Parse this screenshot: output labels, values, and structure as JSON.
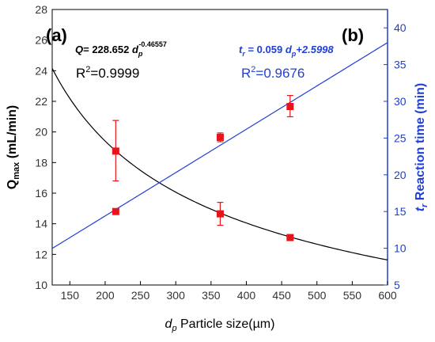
{
  "chart_data": {
    "type": "scatter",
    "panel_labels": [
      "(a)",
      "(b)"
    ],
    "x_axis": {
      "label_italic": "d",
      "label_sub": "p",
      "label_text": " Particle size(µm)",
      "range": [
        125,
        600
      ],
      "ticks": [
        150,
        200,
        250,
        300,
        350,
        400,
        450,
        500,
        550,
        600
      ]
    },
    "y_left": {
      "label_main": "Q",
      "label_sub": "max",
      "label_text": " (mL/min)",
      "range": [
        10,
        28
      ],
      "ticks": [
        10,
        12,
        14,
        16,
        18,
        20,
        22,
        24,
        26,
        28
      ],
      "color": "#000000"
    },
    "y_right": {
      "label_italic": "t",
      "label_sub": "r",
      "label_text": " Reaction time (min)",
      "range": [
        5,
        42.5
      ],
      "ticks": [
        5,
        10,
        15,
        20,
        25,
        30,
        35,
        40
      ],
      "color": "#1f3fd6"
    },
    "equations": {
      "q": {
        "lhs": "Q",
        "eq": "= 228.652 ",
        "var": "d",
        "sub": "p",
        "exp": "-0.46557",
        "r2_label": "R",
        "r2_sup": "2",
        "r2_value": "=0.9999",
        "color": "#000000"
      },
      "t": {
        "lhs": "t",
        "lhs_sub": "r",
        "eq": " = 0.059 ",
        "var": "d",
        "sub": "p",
        "tail": "+2.5998",
        "r2_label": "R",
        "r2_sup": "2",
        "r2_value": "=0.9676",
        "color": "#1f3fd6"
      }
    },
    "series": [
      {
        "axis": "left",
        "marker_color": "#e8141b",
        "points": [
          {
            "x": 215,
            "y": 18.75,
            "err_low": 16.8,
            "err_high": 20.75
          },
          {
            "x": 363,
            "y": 14.65,
            "err_low": 13.9,
            "err_high": 15.4
          },
          {
            "x": 462,
            "y": 13.1,
            "err_low": 13.1,
            "err_high": 13.1
          }
        ],
        "fit": {
          "type": "power",
          "a": 228.652,
          "b": -0.46557,
          "line_color": "#000000"
        }
      },
      {
        "axis": "right",
        "marker_color": "#e8141b",
        "points": [
          {
            "x": 215,
            "y": 15.0,
            "err_low": 15.0,
            "err_high": 15.0
          },
          {
            "x": 363,
            "y": 25.1,
            "err_low": 24.5,
            "err_high": 25.7
          },
          {
            "x": 462,
            "y": 29.3,
            "err_low": 27.9,
            "err_high": 30.8
          }
        ],
        "fit": {
          "type": "linear",
          "m": 0.059,
          "c": 2.5998,
          "line_color": "#1f3fd6"
        }
      }
    ]
  }
}
